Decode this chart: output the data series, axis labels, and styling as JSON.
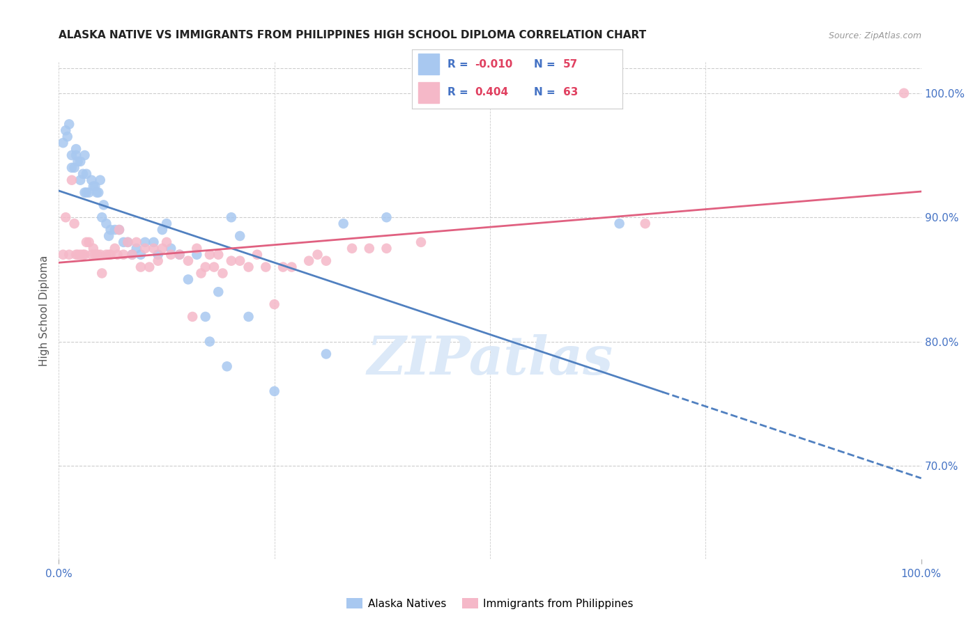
{
  "title": "ALASKA NATIVE VS IMMIGRANTS FROM PHILIPPINES HIGH SCHOOL DIPLOMA CORRELATION CHART",
  "source": "Source: ZipAtlas.com",
  "ylabel": "High School Diploma",
  "legend_label1": "Alaska Natives",
  "legend_label2": "Immigrants from Philippines",
  "r1": "-0.010",
  "n1": "57",
  "r2": "0.404",
  "n2": "63",
  "color_blue": "#A8C8F0",
  "color_pink": "#F5B8C8",
  "color_blue_line": "#5080C0",
  "color_pink_line": "#E06080",
  "color_text_blue": "#4472C4",
  "background_color": "#FFFFFF",
  "grid_color": "#CCCCCC",
  "watermark_color": "#DCE9F8",
  "alaska_x": [
    0.005,
    0.008,
    0.01,
    0.012,
    0.015,
    0.015,
    0.018,
    0.02,
    0.02,
    0.022,
    0.025,
    0.025,
    0.028,
    0.03,
    0.03,
    0.032,
    0.032,
    0.035,
    0.038,
    0.04,
    0.042,
    0.044,
    0.046,
    0.048,
    0.05,
    0.052,
    0.055,
    0.058,
    0.06,
    0.065,
    0.07,
    0.075,
    0.08,
    0.085,
    0.09,
    0.095,
    0.1,
    0.11,
    0.115,
    0.12,
    0.125,
    0.13,
    0.14,
    0.15,
    0.16,
    0.17,
    0.175,
    0.185,
    0.195,
    0.2,
    0.21,
    0.22,
    0.25,
    0.31,
    0.33,
    0.38,
    0.65
  ],
  "alaska_y": [
    0.96,
    0.97,
    0.965,
    0.975,
    0.94,
    0.95,
    0.94,
    0.95,
    0.955,
    0.945,
    0.93,
    0.945,
    0.935,
    0.92,
    0.95,
    0.92,
    0.935,
    0.92,
    0.93,
    0.925,
    0.925,
    0.92,
    0.92,
    0.93,
    0.9,
    0.91,
    0.895,
    0.885,
    0.89,
    0.89,
    0.89,
    0.88,
    0.88,
    0.87,
    0.875,
    0.87,
    0.88,
    0.88,
    0.87,
    0.89,
    0.895,
    0.875,
    0.87,
    0.85,
    0.87,
    0.82,
    0.8,
    0.84,
    0.78,
    0.9,
    0.885,
    0.82,
    0.76,
    0.79,
    0.895,
    0.9,
    0.895
  ],
  "philippines_x": [
    0.005,
    0.008,
    0.012,
    0.015,
    0.018,
    0.02,
    0.022,
    0.025,
    0.028,
    0.03,
    0.032,
    0.035,
    0.038,
    0.04,
    0.042,
    0.045,
    0.048,
    0.05,
    0.055,
    0.058,
    0.06,
    0.065,
    0.068,
    0.07,
    0.075,
    0.08,
    0.085,
    0.09,
    0.095,
    0.1,
    0.105,
    0.11,
    0.115,
    0.12,
    0.125,
    0.13,
    0.14,
    0.15,
    0.155,
    0.16,
    0.165,
    0.17,
    0.175,
    0.18,
    0.185,
    0.19,
    0.2,
    0.21,
    0.22,
    0.23,
    0.24,
    0.25,
    0.26,
    0.27,
    0.29,
    0.3,
    0.31,
    0.34,
    0.36,
    0.38,
    0.42,
    0.68,
    0.98
  ],
  "philippines_y": [
    0.87,
    0.9,
    0.87,
    0.93,
    0.895,
    0.87,
    0.87,
    0.87,
    0.87,
    0.87,
    0.88,
    0.88,
    0.87,
    0.875,
    0.87,
    0.87,
    0.87,
    0.855,
    0.87,
    0.87,
    0.87,
    0.875,
    0.87,
    0.89,
    0.87,
    0.88,
    0.87,
    0.88,
    0.86,
    0.875,
    0.86,
    0.875,
    0.865,
    0.875,
    0.88,
    0.87,
    0.87,
    0.865,
    0.82,
    0.875,
    0.855,
    0.86,
    0.87,
    0.86,
    0.87,
    0.855,
    0.865,
    0.865,
    0.86,
    0.87,
    0.86,
    0.83,
    0.86,
    0.86,
    0.865,
    0.87,
    0.865,
    0.875,
    0.875,
    0.875,
    0.88,
    0.895,
    1.0
  ],
  "xmin": 0.0,
  "xmax": 1.0,
  "ymin": 0.625,
  "ymax": 1.025,
  "ytick_vals": [
    0.7,
    0.8,
    0.9,
    1.0
  ],
  "ytick_labels": [
    "70.0%",
    "80.0%",
    "90.0%",
    "100.0%"
  ],
  "xtick_vals": [
    0.0,
    1.0
  ],
  "xtick_labels": [
    "0.0%",
    "100.0%"
  ],
  "grid_xticks": [
    0.0,
    0.25,
    0.5,
    0.75,
    1.0
  ],
  "grid_yticks": [
    0.7,
    0.8,
    0.9,
    1.0
  ]
}
